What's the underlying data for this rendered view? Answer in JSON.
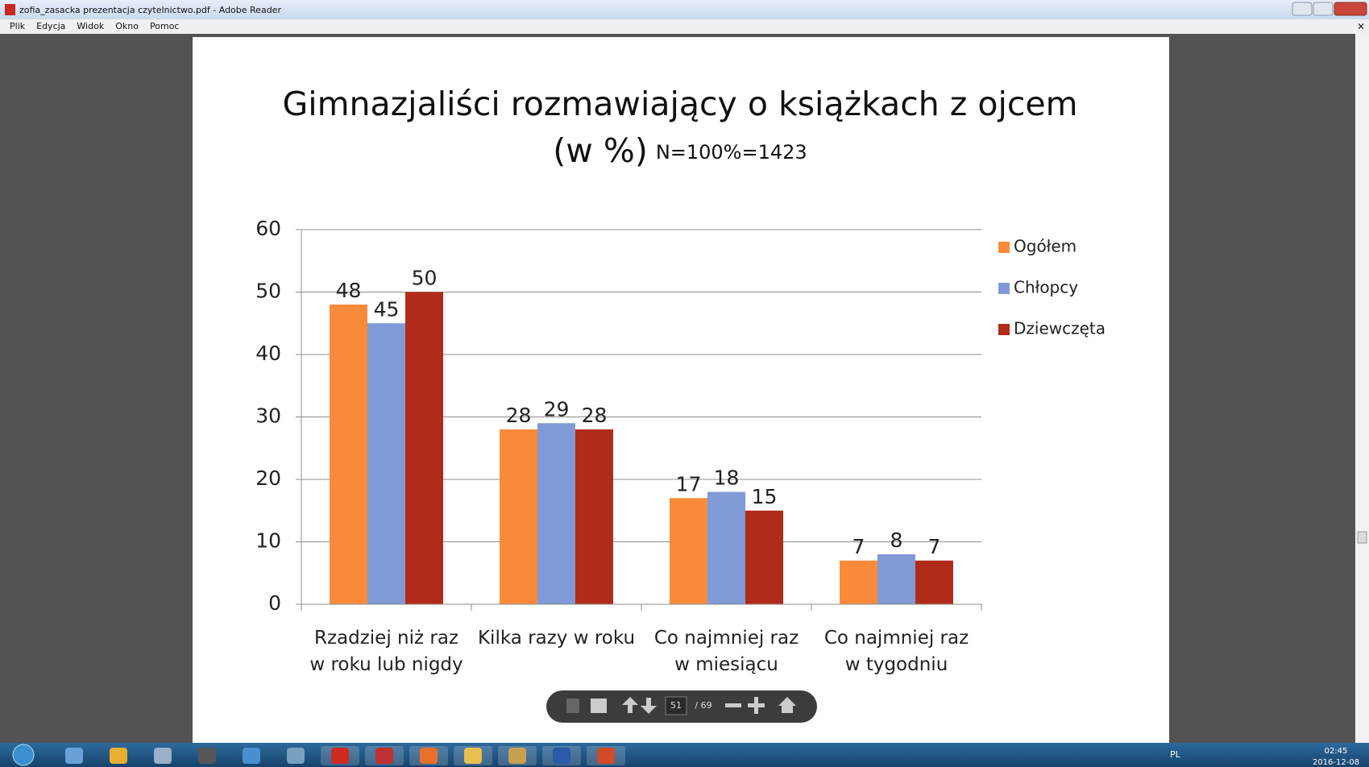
{
  "window": {
    "title": "zofia_zasacka prezentacja czytelnictwo.pdf - Adobe Reader",
    "menu": [
      "Plik",
      "Edycja",
      "Widok",
      "Okno",
      "Pomoc"
    ]
  },
  "chart_data": {
    "type": "bar",
    "title": "Gimnazjaliści rozmawiający o książkach z ojcem",
    "subtitle": "(w %)",
    "note": "N=100%=1423",
    "categories": [
      "Rzadziej niż raz w roku lub nigdy",
      "Kilka razy w roku",
      "Co najmniej raz w miesiącu",
      "Co najmniej raz w tygodniu"
    ],
    "series": [
      {
        "name": "Ogółem",
        "color": "#f98a3a",
        "values": [
          48,
          28,
          17,
          7
        ]
      },
      {
        "name": "Chłopcy",
        "color": "#7f9ad6",
        "values": [
          45,
          29,
          18,
          8
        ]
      },
      {
        "name": "Dziewczęta",
        "color": "#b02b1a",
        "values": [
          50,
          28,
          15,
          7
        ]
      }
    ],
    "ylim": [
      0,
      60
    ],
    "yticks": [
      0,
      10,
      20,
      30,
      40,
      50,
      60
    ],
    "grid": true,
    "legend": "right"
  },
  "toolbar": {
    "page": "51",
    "of": "/ 69"
  },
  "taskbar": {
    "language": "PL",
    "time": "02:45",
    "date": "2016-12-08"
  }
}
